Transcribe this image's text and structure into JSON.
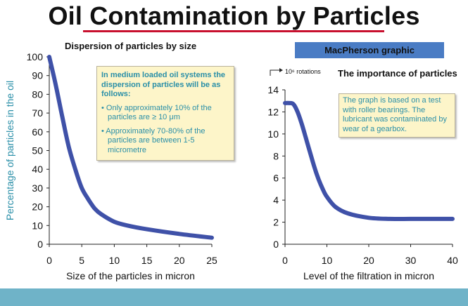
{
  "slide": {
    "title": "Oil Contamination by Particles",
    "banner": "MacPherson graphic"
  },
  "colors": {
    "title_underline": "#c8102e",
    "curve": "#3f51a8",
    "banner": "#4a7cc4",
    "note_background": "#fdf5c9",
    "note_text": "#2a8fa8",
    "footer": "#6fb3c8"
  },
  "note_left": {
    "intro": "In medium loaded oil systems the dispersion of particles will be as follows:",
    "items": [
      "• Only approximately 10% of the particles are ≥ 10 μm",
      "• Approximately 70-80% of the particles are between 1-5 micrometre"
    ]
  },
  "note_right": {
    "text": "The graph is based on a test with roller bearings. The lubricant was contaminated by wear of a gearbox."
  },
  "chart_data": [
    {
      "type": "line",
      "title": "Dispersion of particles by size",
      "xlabel": "Size of the particles in micron",
      "ylabel": "Percentage of particles in the oil",
      "xlim": [
        0,
        25
      ],
      "ylim": [
        0,
        100
      ],
      "xticks": [
        0,
        5,
        10,
        15,
        20,
        25
      ],
      "yticks": [
        0,
        10,
        20,
        30,
        40,
        50,
        60,
        70,
        80,
        90,
        100
      ],
      "grid": false,
      "series": [
        {
          "x": [
            0,
            1,
            2,
            3,
            4,
            5,
            6,
            7,
            8,
            10,
            12,
            15,
            20,
            25
          ],
          "y": [
            100,
            85,
            68,
            52,
            40,
            30,
            24,
            19,
            16,
            12,
            10,
            8,
            5.5,
            3.5
          ]
        }
      ]
    },
    {
      "type": "line",
      "title": "The importance of particles",
      "units_label": "10⁶ rotations",
      "xlabel": "Level of the filtration in micron",
      "xlim": [
        0,
        40
      ],
      "ylim": [
        0,
        14
      ],
      "xticks": [
        0,
        10,
        20,
        30,
        40
      ],
      "yticks": [
        0,
        2,
        4,
        6,
        8,
        10,
        12,
        14
      ],
      "grid": false,
      "series": [
        {
          "x": [
            0,
            1,
            2,
            3,
            4,
            5,
            6,
            7,
            8,
            9,
            10,
            12,
            15,
            20,
            25,
            30,
            35,
            40
          ],
          "y": [
            12.8,
            12.8,
            12.7,
            12.0,
            10.9,
            9.6,
            8.3,
            7.0,
            5.9,
            5.0,
            4.3,
            3.4,
            2.8,
            2.4,
            2.3,
            2.3,
            2.3,
            2.3
          ]
        }
      ]
    }
  ]
}
